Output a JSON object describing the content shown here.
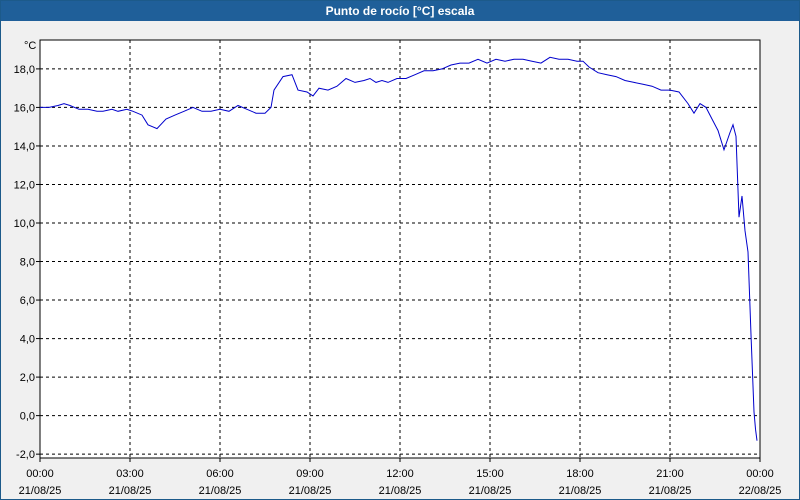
{
  "window": {
    "title": "Punto de rocío [°C] escala"
  },
  "chart_data": {
    "type": "line",
    "title": "Punto de rocío [°C] escala",
    "ylabel": "°C",
    "xlabel": "",
    "ylim": [
      -2.2,
      19.5
    ],
    "xlim": [
      0,
      24
    ],
    "grid": true,
    "y_ticks": [
      "18,0",
      "16,0",
      "14,0",
      "12,0",
      "10,0",
      "8,0",
      "6,0",
      "4,0",
      "2,0",
      "0,0",
      "-2,0"
    ],
    "y_tick_values": [
      18,
      16,
      14,
      12,
      10,
      8,
      6,
      4,
      2,
      0,
      -2
    ],
    "x_ticks": [
      {
        "h": 0,
        "time": "00:00",
        "date": "21/08/25"
      },
      {
        "h": 3,
        "time": "03:00",
        "date": "21/08/25"
      },
      {
        "h": 6,
        "time": "06:00",
        "date": "21/08/25"
      },
      {
        "h": 9,
        "time": "09:00",
        "date": "21/08/25"
      },
      {
        "h": 12,
        "time": "12:00",
        "date": "21/08/25"
      },
      {
        "h": 15,
        "time": "15:00",
        "date": "21/08/25"
      },
      {
        "h": 18,
        "time": "18:00",
        "date": "21/08/25"
      },
      {
        "h": 21,
        "time": "21:00",
        "date": "21/08/25"
      },
      {
        "h": 24,
        "time": "00:00",
        "date": "22/08/25"
      }
    ],
    "series": [
      {
        "color": "#0000cc",
        "x": [
          0,
          0.3,
          0.6,
          0.8,
          1.0,
          1.3,
          1.6,
          1.9,
          2.1,
          2.4,
          2.6,
          2.9,
          3.1,
          3.4,
          3.6,
          3.9,
          4.2,
          4.5,
          4.8,
          5.1,
          5.4,
          5.7,
          6.0,
          6.3,
          6.6,
          6.9,
          7.2,
          7.5,
          7.7,
          7.8,
          8.1,
          8.4,
          8.6,
          8.9,
          9.1,
          9.3,
          9.6,
          9.9,
          10.2,
          10.5,
          10.8,
          11.0,
          11.2,
          11.4,
          11.6,
          11.9,
          12.2,
          12.5,
          12.8,
          13.1,
          13.4,
          13.7,
          14.0,
          14.3,
          14.6,
          14.9,
          15.2,
          15.5,
          15.8,
          16.1,
          16.4,
          16.7,
          17.0,
          17.3,
          17.6,
          17.9,
          18.1,
          18.3,
          18.6,
          18.9,
          19.2,
          19.5,
          19.8,
          20.1,
          20.4,
          20.7,
          21.0,
          21.3,
          21.6,
          21.8,
          22.0,
          22.2,
          22.4,
          22.6,
          22.8,
          23.0,
          23.1,
          23.2,
          23.3,
          23.4,
          23.5,
          23.6,
          23.7,
          23.8,
          23.85,
          23.9
        ],
        "y": [
          16.0,
          16.0,
          16.1,
          16.2,
          16.1,
          15.9,
          15.9,
          15.8,
          15.8,
          15.9,
          15.8,
          15.9,
          15.8,
          15.6,
          15.1,
          14.9,
          15.4,
          15.6,
          15.8,
          16.0,
          15.8,
          15.8,
          15.9,
          15.8,
          16.1,
          15.9,
          15.7,
          15.7,
          16.0,
          16.9,
          17.6,
          17.7,
          16.9,
          16.8,
          16.6,
          17.0,
          16.9,
          17.1,
          17.5,
          17.3,
          17.4,
          17.5,
          17.3,
          17.4,
          17.3,
          17.5,
          17.5,
          17.7,
          17.9,
          17.9,
          18.0,
          18.2,
          18.3,
          18.3,
          18.5,
          18.3,
          18.5,
          18.4,
          18.5,
          18.5,
          18.4,
          18.3,
          18.6,
          18.5,
          18.5,
          18.4,
          18.4,
          18.1,
          17.8,
          17.7,
          17.6,
          17.4,
          17.3,
          17.2,
          17.1,
          16.9,
          16.9,
          16.8,
          16.2,
          15.7,
          16.2,
          16.0,
          15.4,
          14.8,
          13.8,
          14.7,
          15.1,
          14.5,
          10.3,
          11.4,
          9.6,
          8.5,
          4.2,
          0.2,
          -0.7,
          -1.3
        ]
      }
    ]
  }
}
